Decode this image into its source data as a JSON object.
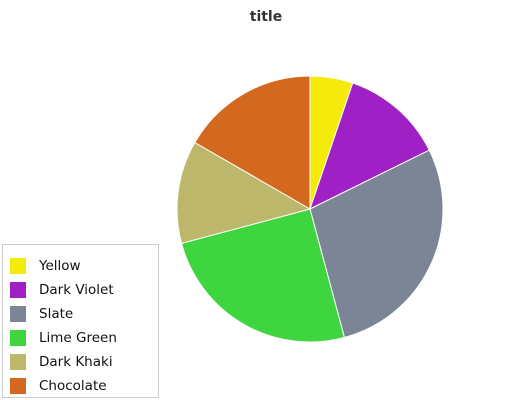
{
  "chart_data": {
    "type": "pie",
    "title": "title",
    "legend_position": "bottom-left",
    "slices": [
      {
        "label": "Yellow",
        "value": 5,
        "color": "#f5eb0a"
      },
      {
        "label": "Dark Violet",
        "value": 12,
        "color": "#9f20c4"
      },
      {
        "label": "Slate",
        "value": 27,
        "color": "#7b8595"
      },
      {
        "label": "Lime Green",
        "value": 24,
        "color": "#3fd53f"
      },
      {
        "label": "Dark Khaki",
        "value": 12,
        "color": "#bdb76b"
      },
      {
        "label": "Chocolate",
        "value": 16,
        "color": "#d2691e"
      }
    ]
  }
}
